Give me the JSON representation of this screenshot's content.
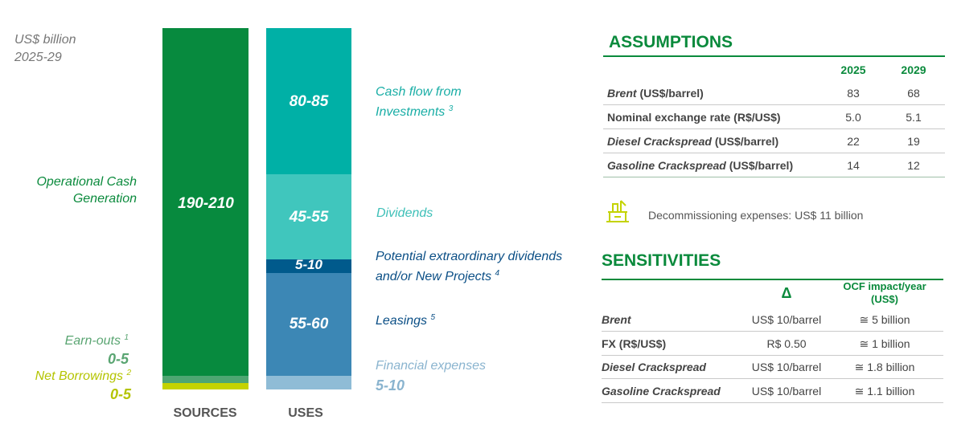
{
  "header": {
    "unit": "US$ billion",
    "period": "2025-29"
  },
  "sources": {
    "title": "SOURCES",
    "segments": [
      {
        "label": "Operational Cash Generation",
        "value": "190-210"
      },
      {
        "label": "Earn-outs",
        "note": "1",
        "value": "0-5"
      },
      {
        "label": "Net Borrowings",
        "note": "2",
        "value": "0-5"
      }
    ]
  },
  "uses": {
    "title": "USES",
    "segments": [
      {
        "label": "Cash flow from Investments",
        "note": "3",
        "value": "80-85"
      },
      {
        "label": "Dividends",
        "value": "45-55"
      },
      {
        "label": "Potential extraordinary dividends and/or New Projects",
        "note": "4",
        "value": "5-10"
      },
      {
        "label": "Leasings",
        "note": "5",
        "value": "55-60"
      },
      {
        "label": "Financial expenses",
        "value": "5-10"
      }
    ]
  },
  "assumptions": {
    "title": "ASSUMPTIONS",
    "columns": [
      "2025",
      "2029"
    ],
    "rows": [
      {
        "name": "Brent",
        "unit": "(US$/barrel)",
        "values": [
          "83",
          "68"
        ]
      },
      {
        "name": "Nominal exchange rate",
        "unit": "(R$/US$)",
        "values": [
          "5.0",
          "5.1"
        ]
      },
      {
        "name": "Diesel Crackspread",
        "unit": "(US$/barrel)",
        "values": [
          "22",
          "19"
        ]
      },
      {
        "name": "Gasoline Crackspread",
        "unit": "(US$/barrel)",
        "values": [
          "14",
          "12"
        ]
      }
    ]
  },
  "decommissioning": "Decommissioning expenses: US$ 11 billion",
  "sensitivities": {
    "title": "SENSITIVITIES",
    "columns": [
      "Δ",
      "OCF impact/year (US$)"
    ],
    "rows": [
      {
        "name": "Brent",
        "delta": "US$ 10/barrel",
        "impact": "≅ 5 billion"
      },
      {
        "name": "FX (R$/US$)",
        "delta": "R$ 0.50",
        "impact": "≅ 1 billion"
      },
      {
        "name": "Diesel Crackspread",
        "delta": "US$ 10/barrel",
        "impact": "≅ 1.8 billion"
      },
      {
        "name": "Gasoline Crackspread",
        "delta": "US$ 10/barrel",
        "impact": "≅ 1.1 billion"
      }
    ]
  }
}
